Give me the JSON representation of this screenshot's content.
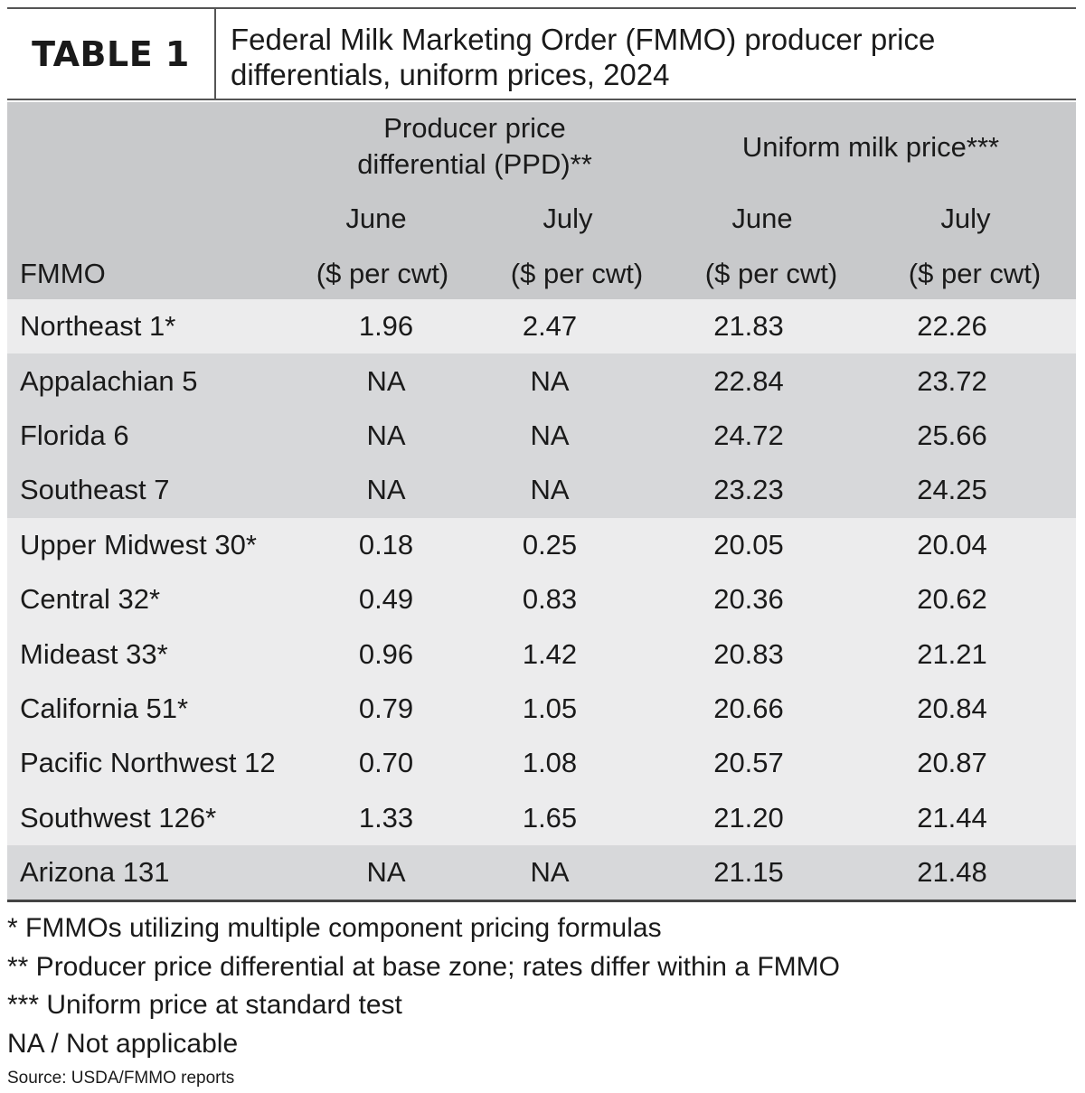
{
  "header": {
    "tag": "TABLE 1",
    "title_line1": "Federal Milk Marketing Order (FMMO) producer price",
    "title_line2": "differentials, uniform prices, 2024"
  },
  "columns": {
    "group_ppd_line1": "Producer price",
    "group_ppd_line2": "differential (PPD)**",
    "group_uniform": "Uniform milk price***",
    "month_june": "June",
    "month_july": "July",
    "unit": "($ per cwt)",
    "fmmo": "FMMO"
  },
  "rows": [
    {
      "name": "Northeast 1*",
      "ppd_june": "1.96",
      "ppd_july": "2.47",
      "uni_june": "21.83",
      "uni_july": "22.26"
    },
    {
      "name": "Appalachian 5",
      "ppd_june": "NA",
      "ppd_july": "NA",
      "uni_june": "22.84",
      "uni_july": "23.72"
    },
    {
      "name": "Florida 6",
      "ppd_june": "NA",
      "ppd_july": "NA",
      "uni_june": "24.72",
      "uni_july": "25.66"
    },
    {
      "name": "Southeast 7",
      "ppd_june": "NA",
      "ppd_july": "NA",
      "uni_june": "23.23",
      "uni_july": "24.25"
    },
    {
      "name": "Upper Midwest 30*",
      "ppd_june": "0.18",
      "ppd_july": "0.25",
      "uni_june": "20.05",
      "uni_july": "20.04"
    },
    {
      "name": "Central 32*",
      "ppd_june": "0.49",
      "ppd_july": "0.83",
      "uni_june": "20.36",
      "uni_july": "20.62"
    },
    {
      "name": "Mideast 33*",
      "ppd_june": "0.96",
      "ppd_july": "1.42",
      "uni_june": "20.83",
      "uni_july": "21.21"
    },
    {
      "name": "California 51*",
      "ppd_june": "0.79",
      "ppd_july": "1.05",
      "uni_june": "20.66",
      "uni_july": "20.84"
    },
    {
      "name": "Pacific Northwest 12",
      "ppd_june": "0.70",
      "ppd_july": "1.08",
      "uni_june": "20.57",
      "uni_july": "20.87"
    },
    {
      "name": "Southwest 126*",
      "ppd_june": "1.33",
      "ppd_july": "1.65",
      "uni_june": "21.20",
      "uni_july": "21.44"
    },
    {
      "name": "Arizona 131",
      "ppd_june": "NA",
      "ppd_july": "NA",
      "uni_june": "21.15",
      "uni_july": "21.48"
    }
  ],
  "notes": {
    "n1": "* FMMOs utilizing multiple component pricing formulas",
    "n2": "** Producer price differential at base zone; rates differ within a FMMO",
    "n3": "*** Uniform price at standard test",
    "n4": "NA / Not applicable",
    "source": "Source: USDA/FMMO reports"
  },
  "colors": {
    "header_band": "#c8c9cb",
    "light_band": "#ececed",
    "dark_band": "#d7d8da",
    "rule": "#444444"
  }
}
